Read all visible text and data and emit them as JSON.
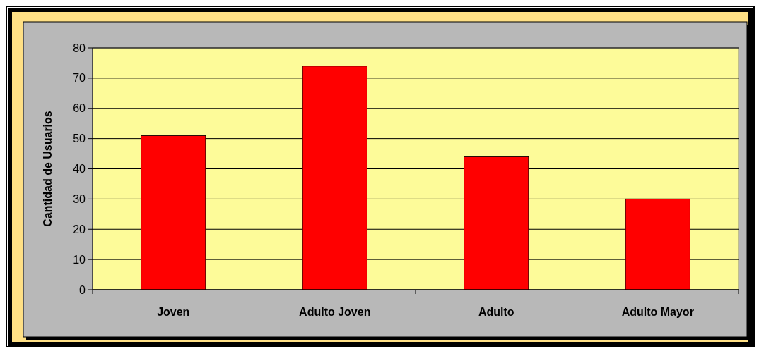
{
  "chart_data": {
    "type": "bar",
    "ylabel": "Cantidad de Usuarios",
    "categories": [
      "Joven",
      "Adulto Joven",
      "Adulto",
      "Adulto Mayor"
    ],
    "values": [
      51,
      74,
      44,
      30
    ],
    "color": "#ff0000",
    "ylim": [
      0,
      80
    ],
    "yticks": [
      0,
      10,
      20,
      30,
      40,
      50,
      60,
      70,
      80
    ],
    "grid": "y"
  }
}
